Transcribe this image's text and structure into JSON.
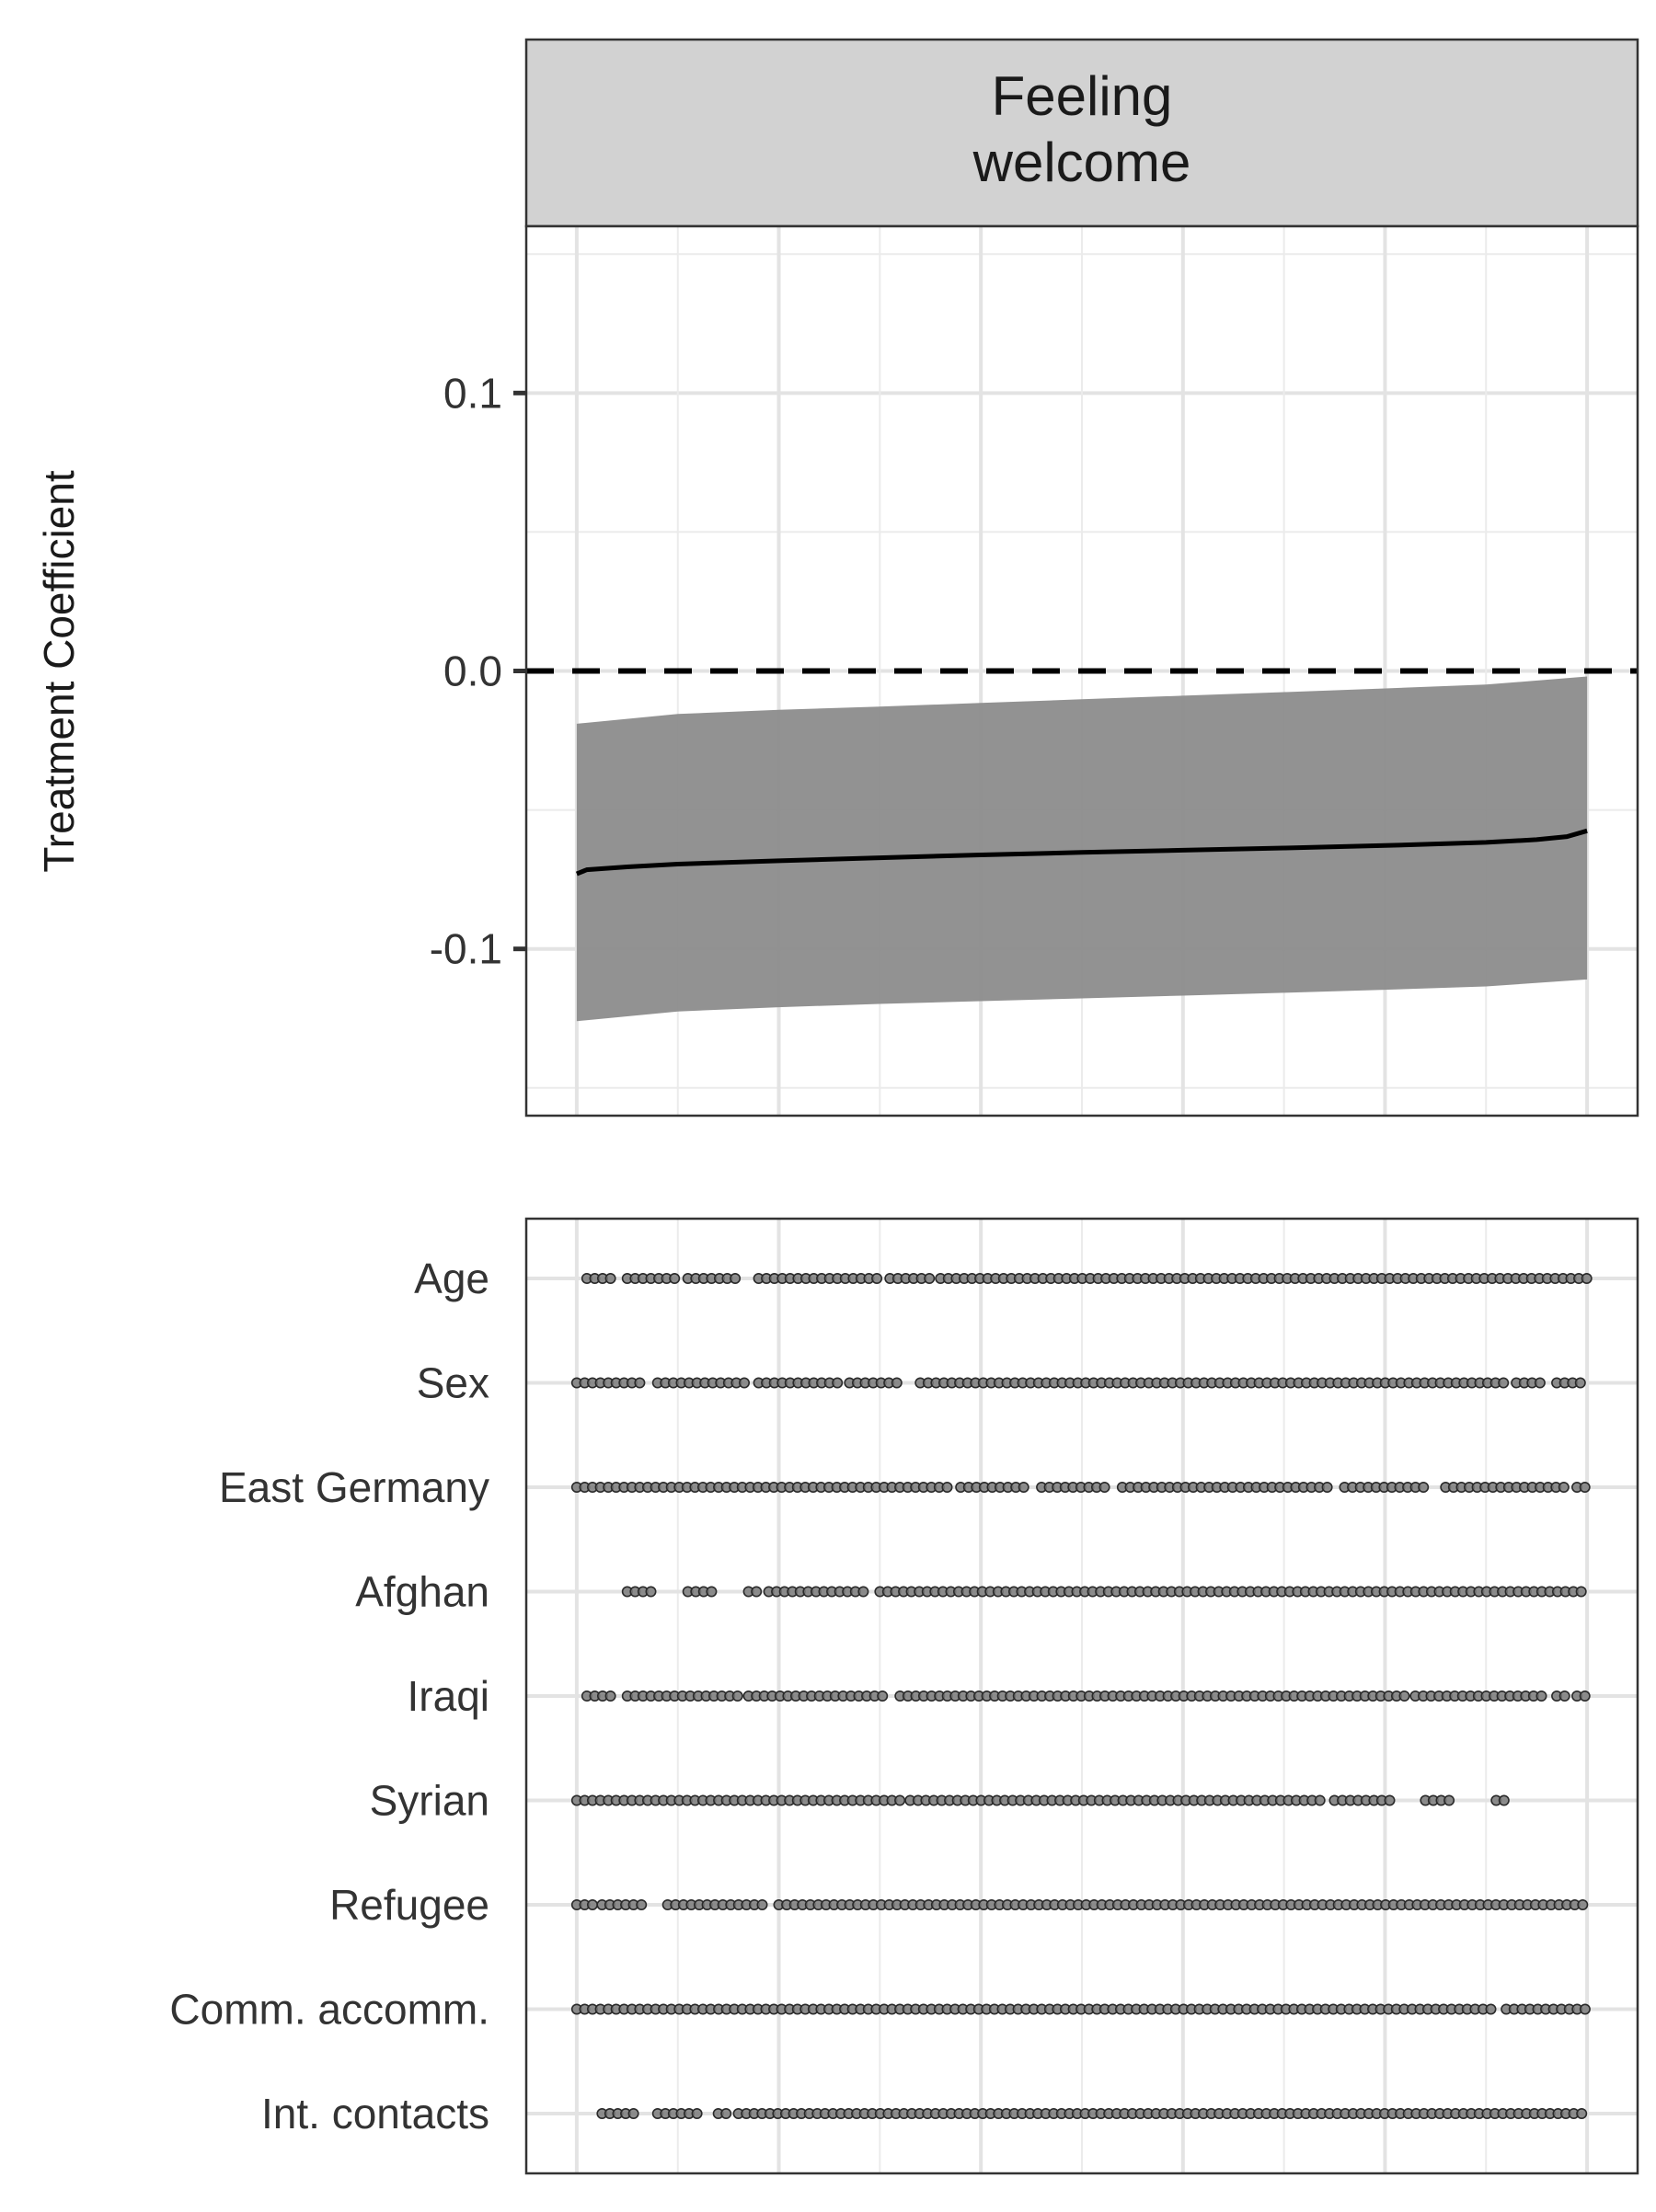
{
  "chart_data": {
    "type": "line",
    "facet_title": "Feeling\nwelcome",
    "ylabel": "Treatment Coefficient",
    "ylim": [
      -0.16,
      0.16
    ],
    "y_ticks": [
      {
        "value": 0.1,
        "label": "0.1"
      },
      {
        "value": 0.0,
        "label": "0.0"
      },
      {
        "value": -0.1,
        "label": "-0.1"
      }
    ],
    "xlim": [
      -0.05,
      1.05
    ],
    "reference_line": {
      "y": 0.0,
      "style": "dashed"
    },
    "estimate": {
      "x": [
        0.0,
        0.01,
        0.05,
        0.1,
        0.2,
        0.3,
        0.4,
        0.5,
        0.6,
        0.7,
        0.8,
        0.9,
        0.95,
        0.98,
        1.0
      ],
      "y": [
        -0.073,
        -0.0715,
        -0.0705,
        -0.0695,
        -0.0683,
        -0.0672,
        -0.0662,
        -0.0653,
        -0.0645,
        -0.0637,
        -0.0628,
        -0.0617,
        -0.0607,
        -0.0596,
        -0.0575
      ]
    },
    "confidence_band": {
      "x": [
        0.0,
        0.1,
        0.2,
        0.3,
        0.4,
        0.5,
        0.6,
        0.7,
        0.8,
        0.9,
        1.0
      ],
      "upper": [
        -0.019,
        -0.0155,
        -0.014,
        -0.0128,
        -0.0115,
        -0.0102,
        -0.0089,
        -0.0076,
        -0.0063,
        -0.0049,
        -0.002
      ],
      "lower": [
        -0.126,
        -0.1225,
        -0.121,
        -0.1198,
        -0.1188,
        -0.1178,
        -0.1168,
        -0.1158,
        -0.1147,
        -0.1135,
        -0.111
      ]
    },
    "specification_rows": [
      {
        "label": "Age",
        "segments": [
          [
            0.01,
            0.04
          ],
          [
            0.05,
            0.1
          ],
          [
            0.11,
            0.16
          ],
          [
            0.18,
            0.3
          ],
          [
            0.31,
            0.35
          ],
          [
            0.36,
            1.0
          ]
        ]
      },
      {
        "label": "Sex",
        "segments": [
          [
            0.0,
            0.07
          ],
          [
            0.08,
            0.17
          ],
          [
            0.18,
            0.26
          ],
          [
            0.27,
            0.32
          ],
          [
            0.34,
            0.92
          ],
          [
            0.93,
            0.96
          ],
          [
            0.97,
            1.0
          ]
        ]
      },
      {
        "label": "East Germany",
        "segments": [
          [
            0.0,
            0.37
          ],
          [
            0.38,
            0.45
          ],
          [
            0.46,
            0.53
          ],
          [
            0.54,
            0.75
          ],
          [
            0.76,
            0.84
          ],
          [
            0.86,
            0.98
          ],
          [
            0.99,
            1.0
          ]
        ]
      },
      {
        "label": "Afghan",
        "segments": [
          [
            0.05,
            0.08
          ],
          [
            0.11,
            0.14
          ],
          [
            0.17,
            0.18
          ],
          [
            0.19,
            0.29
          ],
          [
            0.3,
            1.0
          ]
        ]
      },
      {
        "label": "Iraqi",
        "segments": [
          [
            0.01,
            0.04
          ],
          [
            0.05,
            0.16
          ],
          [
            0.17,
            0.31
          ],
          [
            0.32,
            0.82
          ],
          [
            0.83,
            0.96
          ],
          [
            0.97,
            0.98
          ],
          [
            0.99,
            1.0
          ]
        ]
      },
      {
        "label": "Syrian",
        "segments": [
          [
            0.0,
            0.32
          ],
          [
            0.33,
            0.74
          ],
          [
            0.75,
            0.81
          ],
          [
            0.84,
            0.87
          ],
          [
            0.91,
            0.92
          ]
        ]
      },
      {
        "label": "Refugee",
        "segments": [
          [
            0.0,
            0.02
          ],
          [
            0.025,
            0.07
          ],
          [
            0.09,
            0.19
          ],
          [
            0.2,
            1.0
          ]
        ]
      },
      {
        "label": "Comm. accomm.",
        "segments": [
          [
            0.0,
            0.91
          ],
          [
            0.92,
            1.0
          ]
        ]
      },
      {
        "label": "Int. contacts",
        "segments": [
          [
            0.025,
            0.06
          ],
          [
            0.08,
            0.12
          ],
          [
            0.14,
            0.15
          ],
          [
            0.16,
            1.0
          ]
        ]
      }
    ],
    "grid": true,
    "legend": "none"
  }
}
